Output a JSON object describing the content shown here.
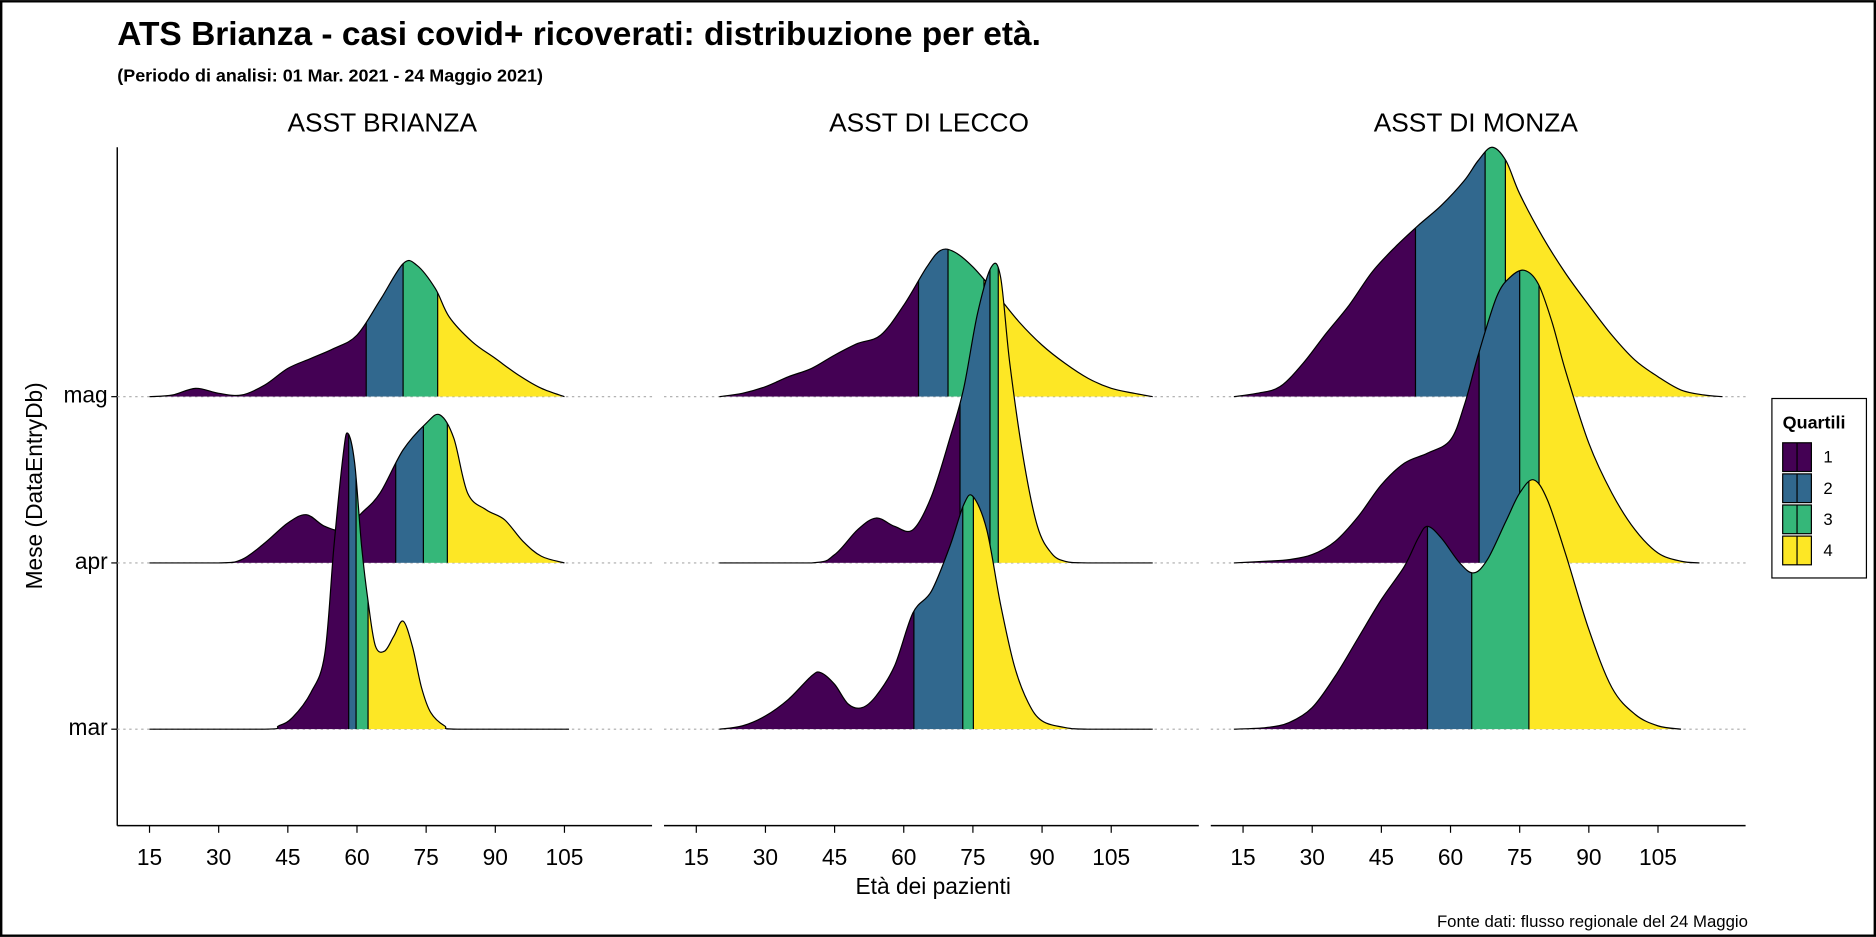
{
  "chart_data": {
    "type": "ridgeline",
    "title": "ATS Brianza - casi covid+ ricoverati: distribuzione per età.",
    "subtitle": "(Periodo di analisi: 01 Mar. 2021 - 24 Maggio 2021)",
    "x_label": "Età dei pazienti",
    "y_label": "Mese (DataEntryDb)",
    "caption": "Fonte dati: flusso regionale del 24 Maggio",
    "categories": [
      "mar",
      "apr",
      "mag"
    ],
    "xlim": [
      8,
      124
    ],
    "ylim": [
      0.42,
      4.5
    ],
    "xticks": [
      15,
      30,
      45,
      60,
      75,
      90,
      105
    ],
    "legend": {
      "title": "Quartili",
      "position": "right",
      "items": [
        {
          "name": "1",
          "color": "#440154"
        },
        {
          "name": "2",
          "color": "#31688e"
        },
        {
          "name": "3",
          "color": "#35b779"
        },
        {
          "name": "4",
          "color": "#fde725"
        }
      ]
    },
    "facets": [
      {
        "title": "ASST BRIANZA",
        "rows": [
          {
            "x": [
              15,
              40,
              43,
              46,
              50,
              53,
              55,
              57,
              58,
              59.5,
              61,
              62.5,
              64,
              66,
              68,
              70,
              72,
              74,
              76,
              79,
              82,
              106
            ],
            "density": [
              0,
              0,
              0.02,
              0.07,
              0.22,
              0.45,
              1.1,
              1.65,
              1.78,
              1.6,
              1.1,
              0.75,
              0.5,
              0.47,
              0.56,
              0.65,
              0.5,
              0.25,
              0.1,
              0.02,
              0,
              0
            ],
            "quartiles": [
              58.2,
              59.8,
              62.4
            ]
          },
          {
            "x": [
              15,
              30,
              35,
              40,
              45,
              49,
              53,
              57,
              61,
              65,
              70,
              75,
              78,
              81,
              84,
              88,
              92,
              96,
              100,
              105
            ],
            "density": [
              0,
              0,
              0.02,
              0.12,
              0.24,
              0.29,
              0.22,
              0.2,
              0.3,
              0.42,
              0.68,
              0.84,
              0.89,
              0.75,
              0.42,
              0.32,
              0.26,
              0.13,
              0.04,
              0
            ],
            "quartiles": [
              68.4,
              74.4,
              79.6
            ]
          },
          {
            "x": [
              15,
              20,
              25,
              30,
              35,
              40,
              45,
              50,
              55,
              60,
              65,
              70,
              73,
              77,
              80,
              85,
              90,
              95,
              100,
              105
            ],
            "density": [
              0,
              0.01,
              0.05,
              0.02,
              0.01,
              0.07,
              0.17,
              0.23,
              0.29,
              0.37,
              0.58,
              0.8,
              0.79,
              0.65,
              0.48,
              0.33,
              0.23,
              0.13,
              0.05,
              0
            ],
            "quartiles": [
              62,
              70,
              77.5
            ]
          }
        ]
      },
      {
        "title": "ASST DI LECCO",
        "rows": [
          {
            "x": [
              20,
              25,
              30,
              35,
              40,
              42,
              45,
              48,
              51,
              54,
              58,
              62,
              66,
              70,
              73,
              75,
              78,
              81,
              84,
              87,
              90,
              95,
              100,
              114
            ],
            "density": [
              0,
              0.02,
              0.08,
              0.18,
              0.32,
              0.34,
              0.27,
              0.15,
              0.13,
              0.2,
              0.38,
              0.7,
              0.83,
              1.1,
              1.35,
              1.4,
              1.2,
              0.75,
              0.38,
              0.16,
              0.05,
              0.01,
              0,
              0
            ],
            "quartiles": [
              62.2,
              72.8,
              75.1
            ]
          },
          {
            "x": [
              20,
              40,
              45,
              50,
              54,
              58,
              62,
              66,
              70,
              73,
              76,
              79,
              81,
              83,
              86,
              89,
              92,
              95,
              100,
              114
            ],
            "density": [
              0,
              0,
              0.05,
              0.2,
              0.27,
              0.22,
              0.2,
              0.4,
              0.75,
              1.05,
              1.5,
              1.78,
              1.72,
              1.2,
              0.62,
              0.22,
              0.06,
              0.01,
              0,
              0
            ],
            "quartiles": [
              72.2,
              78.7,
              80.5
            ]
          },
          {
            "x": [
              20,
              25,
              30,
              35,
              40,
              45,
              50,
              55,
              60,
              65,
              68,
              71,
              75,
              80,
              85,
              90,
              95,
              100,
              105,
              110,
              114
            ],
            "density": [
              0,
              0.02,
              0.06,
              0.12,
              0.17,
              0.25,
              0.32,
              0.37,
              0.55,
              0.78,
              0.88,
              0.87,
              0.78,
              0.62,
              0.45,
              0.31,
              0.2,
              0.11,
              0.05,
              0.02,
              0
            ],
            "quartiles": [
              63.2,
              69.6,
              77.4
            ]
          }
        ]
      },
      {
        "title": "ASST DI MONZA",
        "rows": [
          {
            "x": [
              13,
              20,
              25,
              30,
              35,
              40,
              45,
              50,
              53,
              55,
              58,
              62,
              65,
              68,
              72,
              75,
              78,
              81,
              85,
              90,
              95,
              100,
              105,
              110
            ],
            "density": [
              0,
              0.01,
              0.04,
              0.13,
              0.32,
              0.55,
              0.78,
              0.98,
              1.15,
              1.22,
              1.15,
              1.0,
              0.94,
              1.02,
              1.25,
              1.42,
              1.5,
              1.38,
              1.05,
              0.6,
              0.25,
              0.09,
              0.02,
              0
            ],
            "quartiles": [
              55,
              64.6,
              77
            ]
          },
          {
            "x": [
              13,
              20,
              25,
              30,
              35,
              40,
              45,
              50,
              55,
              60,
              63,
              66,
              70,
              73,
              76,
              79,
              82,
              85,
              90,
              95,
              100,
              105,
              110,
              114
            ],
            "density": [
              0,
              0.01,
              0.02,
              0.05,
              0.13,
              0.28,
              0.47,
              0.6,
              0.66,
              0.74,
              0.95,
              1.25,
              1.6,
              1.72,
              1.76,
              1.68,
              1.45,
              1.15,
              0.72,
              0.42,
              0.2,
              0.06,
              0.01,
              0
            ],
            "quartiles": [
              66.2,
              75,
              79.2
            ]
          },
          {
            "x": [
              13,
              18,
              23,
              28,
              33,
              38,
              43,
              48,
              53,
              58,
              63,
              66,
              69,
              72,
              75,
              80,
              85,
              90,
              95,
              100,
              105,
              110,
              115,
              119
            ],
            "density": [
              0,
              0.02,
              0.06,
              0.2,
              0.38,
              0.55,
              0.75,
              0.9,
              1.03,
              1.15,
              1.3,
              1.42,
              1.5,
              1.42,
              1.22,
              0.96,
              0.74,
              0.55,
              0.37,
              0.22,
              0.12,
              0.04,
              0.01,
              0
            ],
            "quartiles": [
              52.4,
              67.5,
              71.9
            ]
          }
        ]
      }
    ]
  }
}
